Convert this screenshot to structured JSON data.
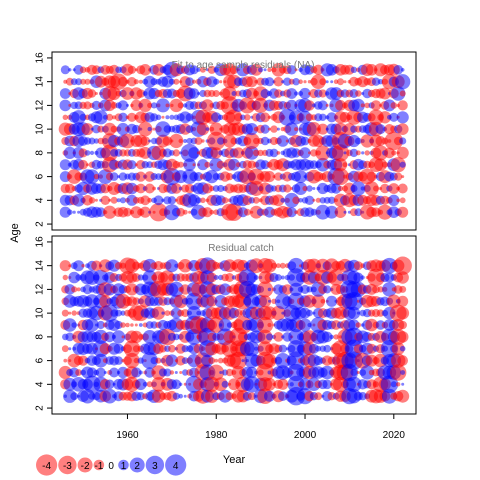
{
  "chart_data": [
    {
      "type": "scatter",
      "title": "Fit to age sample residuals (NA)",
      "xlabel": "Year",
      "ylabel": "Age",
      "xlim": [
        1943,
        2025
      ],
      "ylim": [
        1.5,
        16.5
      ],
      "x_ticks": [],
      "y_ticks": [
        2,
        4,
        6,
        8,
        10,
        12,
        14,
        16
      ],
      "years": [
        1946,
        2022
      ],
      "ages": [
        3,
        15
      ],
      "color_positive": "#0000FF",
      "color_negative": "#FF0000",
      "note": "Bubble area proportional to |residual|"
    },
    {
      "type": "scatter",
      "title": "Residual catch",
      "xlabel": "Year",
      "ylabel": "",
      "xlim": [
        1943,
        2025
      ],
      "ylim": [
        1.5,
        16.5
      ],
      "x_ticks": [
        1960,
        1980,
        2000,
        2020
      ],
      "y_ticks": [
        2,
        4,
        6,
        8,
        10,
        12,
        14,
        16
      ],
      "years": [
        1946,
        2022
      ],
      "ages": [
        3,
        14
      ],
      "color_positive": "#0000FF",
      "color_negative": "#FF0000"
    }
  ],
  "legend": {
    "values": [
      -4,
      -3,
      -2,
      -1,
      0,
      1,
      2,
      3,
      4
    ],
    "labels": [
      "-4",
      "-3",
      "-2",
      "-1",
      "0",
      "1",
      "2",
      "3",
      "4"
    ]
  },
  "axis_labels": {
    "y": "Age",
    "x": "Year"
  }
}
